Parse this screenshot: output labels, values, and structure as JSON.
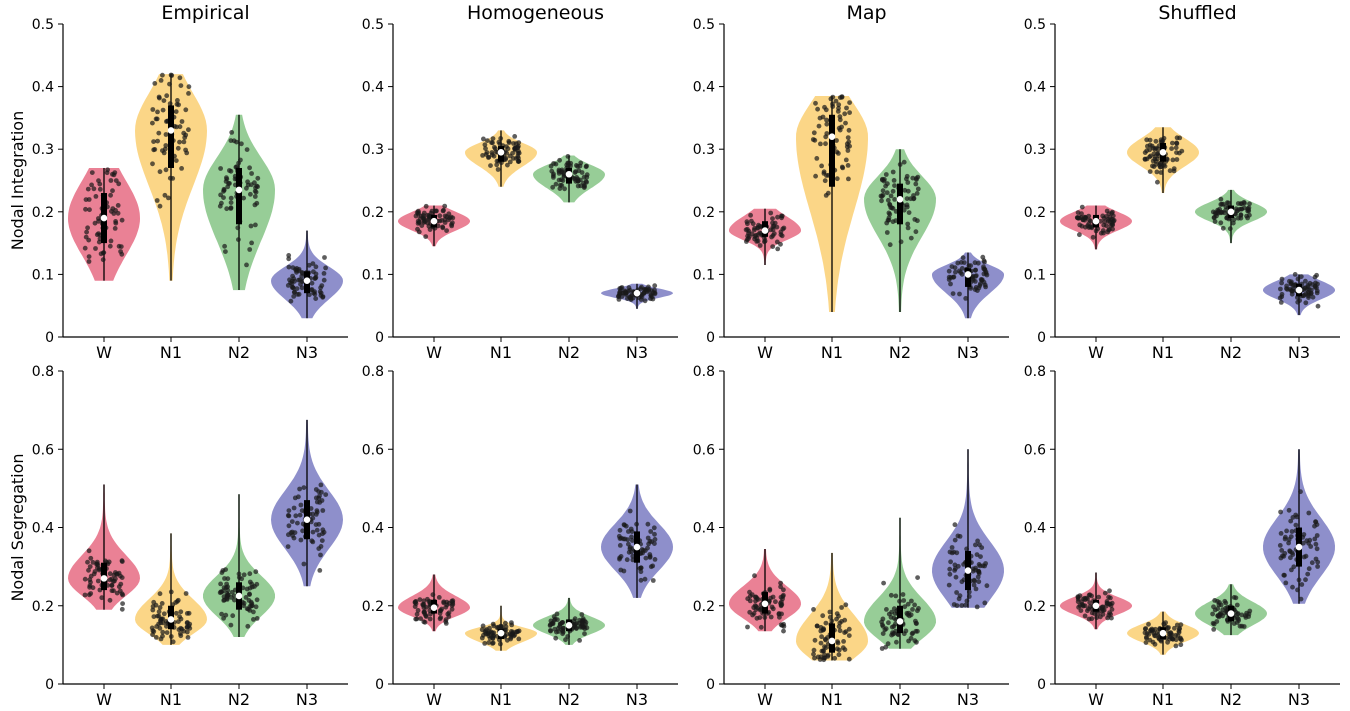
{
  "chart_data": [
    {
      "row": "integration",
      "title": "Empirical",
      "ylabel": "Nodal Integration",
      "type": "violin",
      "categories": [
        "W",
        "N1",
        "N2",
        "N3"
      ],
      "ylim": [
        0,
        0.5
      ],
      "yticks": [
        "0",
        "0.1",
        "0.2",
        "0.3",
        "0.4",
        "0.5"
      ],
      "series": [
        {
          "name": "W",
          "min": 0.09,
          "q1": 0.15,
          "median": 0.19,
          "q3": 0.23,
          "max": 0.27
        },
        {
          "name": "N1",
          "min": 0.09,
          "q1": 0.27,
          "median": 0.33,
          "q3": 0.37,
          "max": 0.42
        },
        {
          "name": "N2",
          "min": 0.075,
          "q1": 0.18,
          "median": 0.235,
          "q3": 0.27,
          "max": 0.355
        },
        {
          "name": "N3",
          "min": 0.03,
          "q1": 0.07,
          "median": 0.09,
          "q3": 0.105,
          "max": 0.17
        }
      ]
    },
    {
      "row": "integration",
      "title": "Homogeneous",
      "type": "violin",
      "categories": [
        "W",
        "N1",
        "N2",
        "N3"
      ],
      "ylim": [
        0,
        0.5
      ],
      "yticks": [
        "0",
        "0.1",
        "0.2",
        "0.3",
        "0.4",
        "0.5"
      ],
      "series": [
        {
          "name": "W",
          "min": 0.145,
          "q1": 0.175,
          "median": 0.185,
          "q3": 0.195,
          "max": 0.21
        },
        {
          "name": "N1",
          "min": 0.24,
          "q1": 0.28,
          "median": 0.295,
          "q3": 0.305,
          "max": 0.33
        },
        {
          "name": "N2",
          "min": 0.215,
          "q1": 0.245,
          "median": 0.26,
          "q3": 0.27,
          "max": 0.29
        },
        {
          "name": "N3",
          "min": 0.045,
          "q1": 0.065,
          "median": 0.07,
          "q3": 0.075,
          "max": 0.085
        }
      ]
    },
    {
      "row": "integration",
      "title": "Map",
      "type": "violin",
      "categories": [
        "W",
        "N1",
        "N2",
        "N3"
      ],
      "ylim": [
        0,
        0.5
      ],
      "yticks": [
        "0",
        "0.1",
        "0.2",
        "0.3",
        "0.4",
        "0.5"
      ],
      "series": [
        {
          "name": "W",
          "min": 0.115,
          "q1": 0.16,
          "median": 0.17,
          "q3": 0.185,
          "max": 0.205
        },
        {
          "name": "N1",
          "min": 0.04,
          "q1": 0.24,
          "median": 0.32,
          "q3": 0.355,
          "max": 0.385
        },
        {
          "name": "N2",
          "min": 0.04,
          "q1": 0.18,
          "median": 0.22,
          "q3": 0.245,
          "max": 0.3
        },
        {
          "name": "N3",
          "min": 0.03,
          "q1": 0.08,
          "median": 0.1,
          "q3": 0.11,
          "max": 0.135
        }
      ]
    },
    {
      "row": "integration",
      "title": "Shuffled",
      "type": "violin",
      "categories": [
        "W",
        "N1",
        "N2",
        "N3"
      ],
      "ylim": [
        0,
        0.5
      ],
      "yticks": [
        "0",
        "0.1",
        "0.2",
        "0.3",
        "0.4",
        "0.5"
      ],
      "series": [
        {
          "name": "W",
          "min": 0.14,
          "q1": 0.175,
          "median": 0.185,
          "q3": 0.195,
          "max": 0.21
        },
        {
          "name": "N1",
          "min": 0.23,
          "q1": 0.28,
          "median": 0.295,
          "q3": 0.31,
          "max": 0.335
        },
        {
          "name": "N2",
          "min": 0.15,
          "q1": 0.19,
          "median": 0.2,
          "q3": 0.21,
          "max": 0.235
        },
        {
          "name": "N3",
          "min": 0.035,
          "q1": 0.065,
          "median": 0.075,
          "q3": 0.085,
          "max": 0.1
        }
      ]
    },
    {
      "row": "segregation",
      "title": "",
      "ylabel": "Nodal Segregation",
      "type": "violin",
      "categories": [
        "W",
        "N1",
        "N2",
        "N3"
      ],
      "ylim": [
        0,
        0.8
      ],
      "yticks": [
        "0",
        "0.2",
        "0.4",
        "0.6",
        "0.8"
      ],
      "series": [
        {
          "name": "W",
          "min": 0.19,
          "q1": 0.24,
          "median": 0.27,
          "q3": 0.31,
          "max": 0.51
        },
        {
          "name": "N1",
          "min": 0.1,
          "q1": 0.14,
          "median": 0.165,
          "q3": 0.2,
          "max": 0.385
        },
        {
          "name": "N2",
          "min": 0.12,
          "q1": 0.19,
          "median": 0.225,
          "q3": 0.26,
          "max": 0.485
        },
        {
          "name": "N3",
          "min": 0.25,
          "q1": 0.37,
          "median": 0.42,
          "q3": 0.47,
          "max": 0.675
        }
      ]
    },
    {
      "row": "segregation",
      "title": "",
      "type": "violin",
      "categories": [
        "W",
        "N1",
        "N2",
        "N3"
      ],
      "ylim": [
        0,
        0.8
      ],
      "yticks": [
        "0",
        "0.2",
        "0.4",
        "0.6",
        "0.8"
      ],
      "series": [
        {
          "name": "W",
          "min": 0.135,
          "q1": 0.18,
          "median": 0.195,
          "q3": 0.215,
          "max": 0.28
        },
        {
          "name": "N1",
          "min": 0.085,
          "q1": 0.115,
          "median": 0.13,
          "q3": 0.14,
          "max": 0.2
        },
        {
          "name": "N2",
          "min": 0.1,
          "q1": 0.135,
          "median": 0.15,
          "q3": 0.165,
          "max": 0.22
        },
        {
          "name": "N3",
          "min": 0.22,
          "q1": 0.31,
          "median": 0.35,
          "q3": 0.39,
          "max": 0.51
        }
      ]
    },
    {
      "row": "segregation",
      "title": "",
      "type": "violin",
      "categories": [
        "W",
        "N1",
        "N2",
        "N3"
      ],
      "ylim": [
        0,
        0.8
      ],
      "yticks": [
        "0",
        "0.2",
        "0.4",
        "0.6",
        "0.8"
      ],
      "series": [
        {
          "name": "W",
          "min": 0.135,
          "q1": 0.18,
          "median": 0.205,
          "q3": 0.235,
          "max": 0.345
        },
        {
          "name": "N1",
          "min": 0.06,
          "q1": 0.08,
          "median": 0.11,
          "q3": 0.155,
          "max": 0.335
        },
        {
          "name": "N2",
          "min": 0.09,
          "q1": 0.13,
          "median": 0.16,
          "q3": 0.2,
          "max": 0.425
        },
        {
          "name": "N3",
          "min": 0.195,
          "q1": 0.24,
          "median": 0.29,
          "q3": 0.34,
          "max": 0.6
        }
      ]
    },
    {
      "row": "segregation",
      "title": "",
      "type": "violin",
      "categories": [
        "W",
        "N1",
        "N2",
        "N3"
      ],
      "ylim": [
        0,
        0.8
      ],
      "yticks": [
        "0",
        "0.2",
        "0.4",
        "0.6",
        "0.8"
      ],
      "series": [
        {
          "name": "W",
          "min": 0.14,
          "q1": 0.185,
          "median": 0.2,
          "q3": 0.215,
          "max": 0.285
        },
        {
          "name": "N1",
          "min": 0.075,
          "q1": 0.115,
          "median": 0.13,
          "q3": 0.145,
          "max": 0.185
        },
        {
          "name": "N2",
          "min": 0.125,
          "q1": 0.16,
          "median": 0.18,
          "q3": 0.2,
          "max": 0.255
        },
        {
          "name": "N3",
          "min": 0.205,
          "q1": 0.3,
          "median": 0.35,
          "q3": 0.4,
          "max": 0.6
        }
      ]
    }
  ],
  "colors": {
    "W": "#e8768c",
    "N1": "#fbd27d",
    "N2": "#8ec98e",
    "N3": "#8486c7"
  },
  "median_marker_color": "#ffffff",
  "point_color": "#1a1a1a"
}
